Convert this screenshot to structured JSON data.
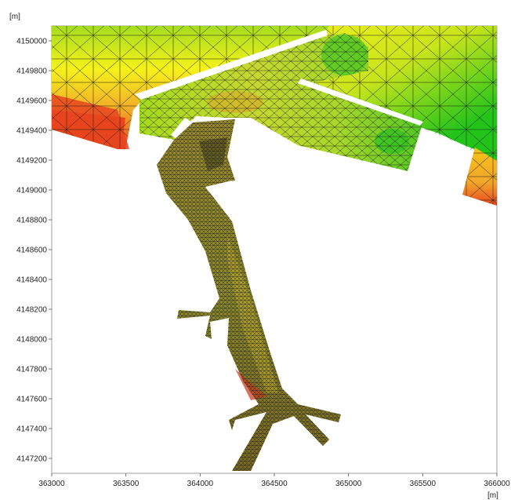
{
  "chart_data": {
    "type": "heatmap",
    "description_free": true,
    "x_unit": "[m]",
    "y_unit": "[m]",
    "xlim": [
      363000,
      366000
    ],
    "ylim": [
      4147100,
      4150100
    ],
    "x_ticks": [
      "363000",
      "363500",
      "364000",
      "364500",
      "365000",
      "365500",
      "366000"
    ],
    "y_ticks": [
      "4150000",
      "4149800",
      "4149600",
      "4149400",
      "4149200",
      "4149000",
      "4148800",
      "4148600",
      "4148400",
      "4148200",
      "4148000",
      "4147800",
      "4147600",
      "4147400",
      "4147200"
    ],
    "grid": false,
    "mesh": true
  },
  "colors": {
    "green": "#22c41a",
    "yellow_green": "#a6dc1e",
    "yellow": "#f6f21a",
    "orange": "#f2a629",
    "red": "#e8451e",
    "river_olive": "#8c8a2a",
    "river_dark": "#5e5a22",
    "mesh_line": "#1a1a1a"
  }
}
